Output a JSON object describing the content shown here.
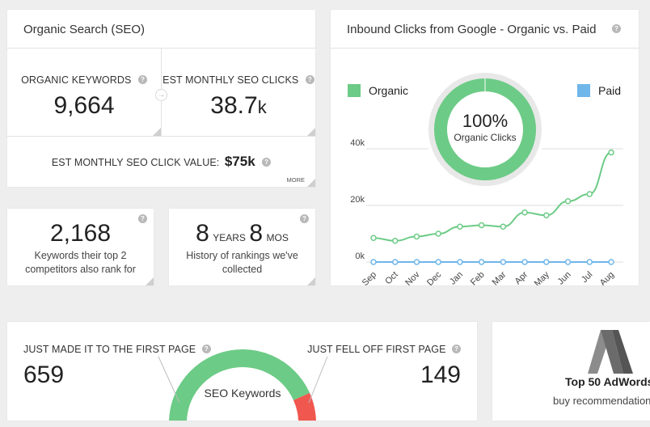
{
  "seo": {
    "title": "Organic Search (SEO)",
    "keywords_label": "ORGANIC KEYWORDS",
    "keywords_value": "9,664",
    "clicks_label": "EST MONTHLY SEO CLICKS",
    "clicks_value": "38.7",
    "clicks_unit": "k",
    "click_value_label": "EST MONTHLY SEO CLICK VALUE:",
    "click_value": "$75k",
    "more": "MORE",
    "help": "?"
  },
  "competitors": {
    "value": "2,168",
    "desc_line1": "Keywords their top 2",
    "desc_line2": "competitors also rank for"
  },
  "history": {
    "years": "8",
    "years_label": "YEARS",
    "mos": "8",
    "mos_label": "MOS",
    "desc_line1": "History of rankings we've",
    "desc_line2": "collected"
  },
  "inbound": {
    "title": "Inbound Clicks from Google - Organic vs. Paid",
    "donut_percent": "100%",
    "donut_label": "Organic Clicks",
    "colors": {
      "organic": "#6ccb86",
      "paid": "#6fb6ea"
    }
  },
  "chart_data": {
    "type": "line",
    "categories": [
      "Sep",
      "Oct",
      "Nov",
      "Dec",
      "Jan",
      "Feb",
      "Mar",
      "Apr",
      "May",
      "Jun",
      "Jul",
      "Aug"
    ],
    "series": [
      {
        "name": "Organic",
        "values": [
          8.5,
          7.5,
          9,
          10,
          12.5,
          13,
          12.5,
          17.5,
          16.5,
          21.5,
          24,
          38.7
        ]
      },
      {
        "name": "Paid",
        "values": [
          0,
          0,
          0,
          0,
          0,
          0,
          0,
          0,
          0,
          0,
          0,
          0
        ]
      }
    ],
    "y_ticks": [
      "0k",
      "20k",
      "40k"
    ],
    "ylim": [
      0,
      40
    ],
    "legend_placement": "top"
  },
  "first_page": {
    "made_label": "JUST MADE IT TO THE FIRST PAGE",
    "made_value": "659",
    "fell_label": "JUST FELL OFF FIRST PAGE",
    "fell_value": "149",
    "gauge_label": "SEO Keywords",
    "gauge_fraction_made": 0.8156,
    "colors": {
      "made": "#6ccb86",
      "fell": "#f0574f"
    }
  },
  "adwords": {
    "title": "Top 50 AdWords",
    "subtitle": "buy recommendations"
  }
}
